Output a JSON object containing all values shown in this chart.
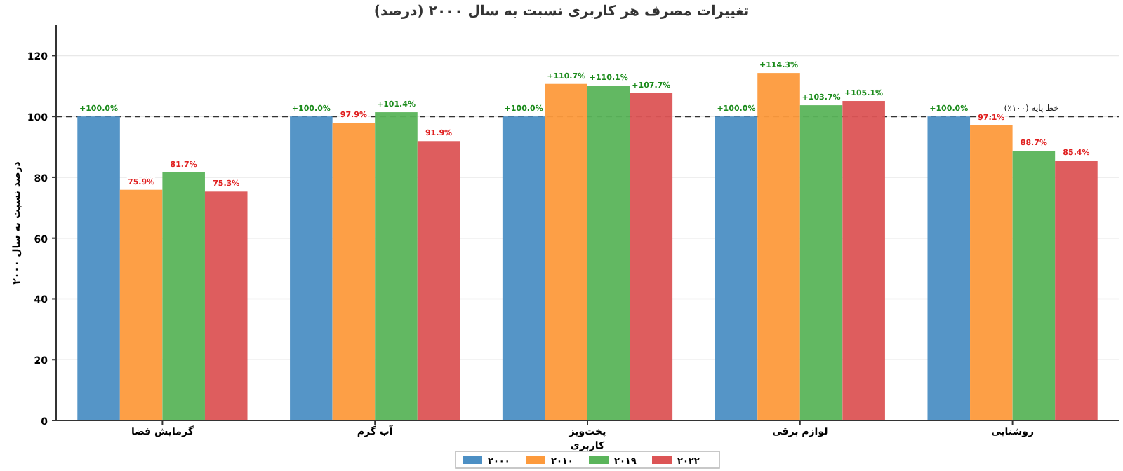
{
  "chart_data": {
    "type": "bar",
    "title": "تغییرات مصرف هر کاربری نسبت به سال ۲۰۰۰ (درصد)",
    "xlabel": "کاربری",
    "ylabel": "درصد نسبت به سال ۲۰۰۰",
    "categories": [
      "گرمایش فضا",
      "آب گرم",
      "پخت‌وپز",
      "لوازم برقی",
      "روشنایی"
    ],
    "series": [
      {
        "name": "۲۰۰۰",
        "color": "#4c8fc4",
        "values": [
          100,
          100,
          100,
          100,
          100
        ],
        "value_labels": [
          "+100.0%",
          "+100.0%",
          "+100.0%",
          "+100.0%",
          "+100.0%"
        ]
      },
      {
        "name": "۲۰۱۰",
        "color": "#fd9a3c",
        "values": [
          75.9,
          97.9,
          110.7,
          114.3,
          97.1
        ],
        "value_labels": [
          "75.9%",
          "97.9%",
          "+110.7%",
          "+114.3%",
          "97.1%"
        ]
      },
      {
        "name": "۲۰۱۹",
        "color": "#5ab45a",
        "values": [
          81.7,
          101.4,
          110.1,
          103.7,
          88.7
        ],
        "value_labels": [
          "81.7%",
          "+101.4%",
          "+110.1%",
          "+103.7%",
          "88.7%"
        ]
      },
      {
        "name": "۲۰۲۲",
        "color": "#dc5455",
        "values": [
          75.3,
          91.9,
          107.7,
          105.1,
          85.4
        ],
        "value_labels": [
          "75.3%",
          "91.9%",
          "+107.7%",
          "+105.1%",
          "85.4%"
        ]
      }
    ],
    "ylim": [
      0,
      130
    ],
    "yticks": [
      0,
      20,
      40,
      60,
      80,
      100,
      120
    ],
    "grid": "y",
    "legend": "bottom",
    "ref_lines": [
      {
        "axis": "y",
        "value": 100,
        "label": "خط پایه (۱۰۰٪)",
        "color": "#333333",
        "line_style": "dashed"
      }
    ]
  }
}
